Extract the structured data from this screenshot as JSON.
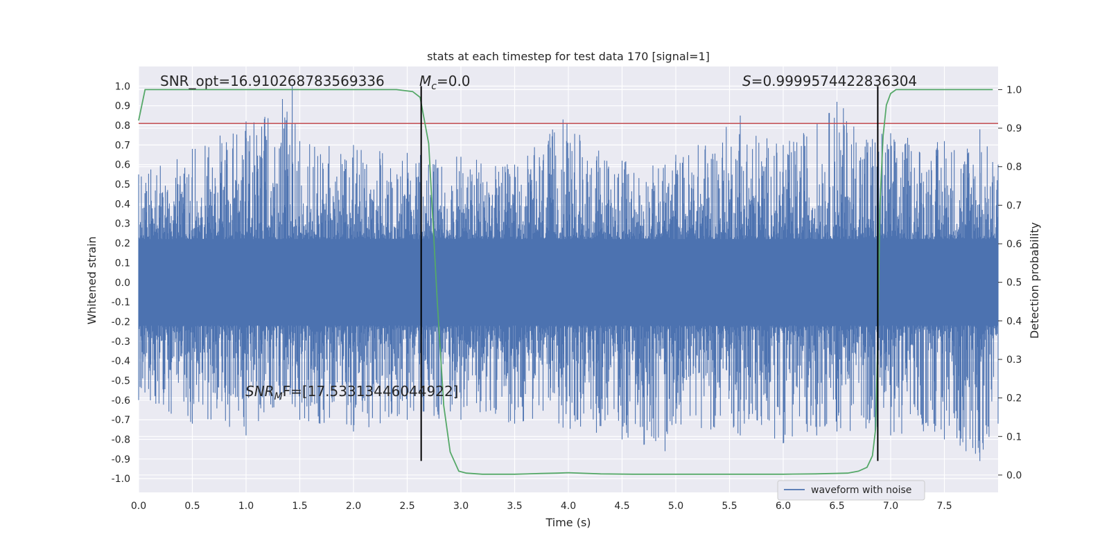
{
  "chart_data": {
    "type": "line",
    "title": "stats at each timestep for test data 170 [signal=1]",
    "xlabel": "Time (s)",
    "ylabel": "Whitened strain",
    "ylabel_right": "Detection probability",
    "xlim": [
      0.0,
      8.0
    ],
    "ylim": [
      -1.07,
      1.1
    ],
    "ylim_right": [
      -0.045,
      1.06
    ],
    "x_ticks": [
      "0.0",
      "0.5",
      "1.0",
      "1.5",
      "2.0",
      "2.5",
      "3.0",
      "3.5",
      "4.0",
      "4.5",
      "5.0",
      "5.5",
      "6.0",
      "6.5",
      "7.0",
      "7.5"
    ],
    "y_ticks": [
      "1.0",
      "0.9",
      "0.8",
      "0.7",
      "0.6",
      "0.5",
      "0.4",
      "0.3",
      "0.2",
      "0.1",
      "0.0",
      "-0.1",
      "-0.2",
      "-0.3",
      "-0.4",
      "-0.5",
      "-0.6",
      "-0.7",
      "-0.8",
      "-0.9",
      "-1.0"
    ],
    "y_ticks_right": [
      "1.0",
      "0.9",
      "0.8",
      "0.7",
      "0.6",
      "0.5",
      "0.4",
      "0.3",
      "0.2",
      "0.1",
      "0.0"
    ],
    "grid": true,
    "legend_position": "lower-right",
    "annotations": {
      "snr_opt": "SNR_opt=16.910268783569336",
      "mc_symbol": "M",
      "mc_sub": "c",
      "mc_value": "=0.0",
      "s_symbol": "S",
      "s_value": "=0.9999574422836304",
      "snr_mf_symbol": "SNR",
      "snr_mf_sub": "M",
      "snr_mf_value": "F=[17.53313446044922]"
    },
    "threshold": {
      "y": 0.81,
      "color": "#c44e52"
    },
    "vertical_lines": {
      "x": [
        2.63,
        6.88
      ],
      "y_range": [
        -0.91,
        1.0
      ],
      "color": "#000000"
    },
    "series": [
      {
        "name": "waveform with noise",
        "axis": "left",
        "color": "#4c72b0",
        "envelope": {
          "x": [
            0.0,
            0.5,
            1.0,
            1.43,
            1.5,
            2.0,
            2.5,
            3.0,
            3.5,
            3.95,
            4.5,
            4.9,
            5.0,
            5.6,
            6.0,
            6.5,
            7.0,
            7.5,
            7.83,
            8.0
          ],
          "upper": [
            0.55,
            0.68,
            0.82,
            1.0,
            0.72,
            0.7,
            0.66,
            0.64,
            0.6,
            0.83,
            0.62,
            0.6,
            0.65,
            0.85,
            0.7,
            0.92,
            0.76,
            0.72,
            0.78,
            0.6
          ],
          "lower": [
            -0.6,
            -0.72,
            -0.78,
            -0.62,
            -0.7,
            -0.76,
            -0.7,
            -0.7,
            -0.72,
            -0.74,
            -0.8,
            -0.86,
            -0.72,
            -0.78,
            -0.82,
            -0.76,
            -0.78,
            -0.8,
            -0.91,
            -0.72
          ]
        }
      },
      {
        "name": "",
        "axis": "right",
        "color": "#55a868",
        "x": [
          0.0,
          0.06,
          0.2,
          0.5,
          1.0,
          1.5,
          2.0,
          2.4,
          2.55,
          2.62,
          2.7,
          2.78,
          2.84,
          2.9,
          2.98,
          3.05,
          3.2,
          3.5,
          3.75,
          3.9,
          4.0,
          4.3,
          4.6,
          5.0,
          5.5,
          6.0,
          6.3,
          6.6,
          6.7,
          6.78,
          6.83,
          6.86,
          6.88,
          6.9,
          6.93,
          6.96,
          7.0,
          7.05,
          7.5,
          7.95
        ],
        "y": [
          0.92,
          1.0,
          1.0,
          1.0,
          1.0,
          1.0,
          1.0,
          1.0,
          0.995,
          0.98,
          0.86,
          0.45,
          0.18,
          0.06,
          0.01,
          0.005,
          0.002,
          0.002,
          0.004,
          0.005,
          0.006,
          0.003,
          0.002,
          0.002,
          0.002,
          0.002,
          0.003,
          0.005,
          0.01,
          0.02,
          0.05,
          0.12,
          0.35,
          0.7,
          0.88,
          0.96,
          0.99,
          1.0,
          1.0,
          1.0
        ]
      }
    ]
  }
}
